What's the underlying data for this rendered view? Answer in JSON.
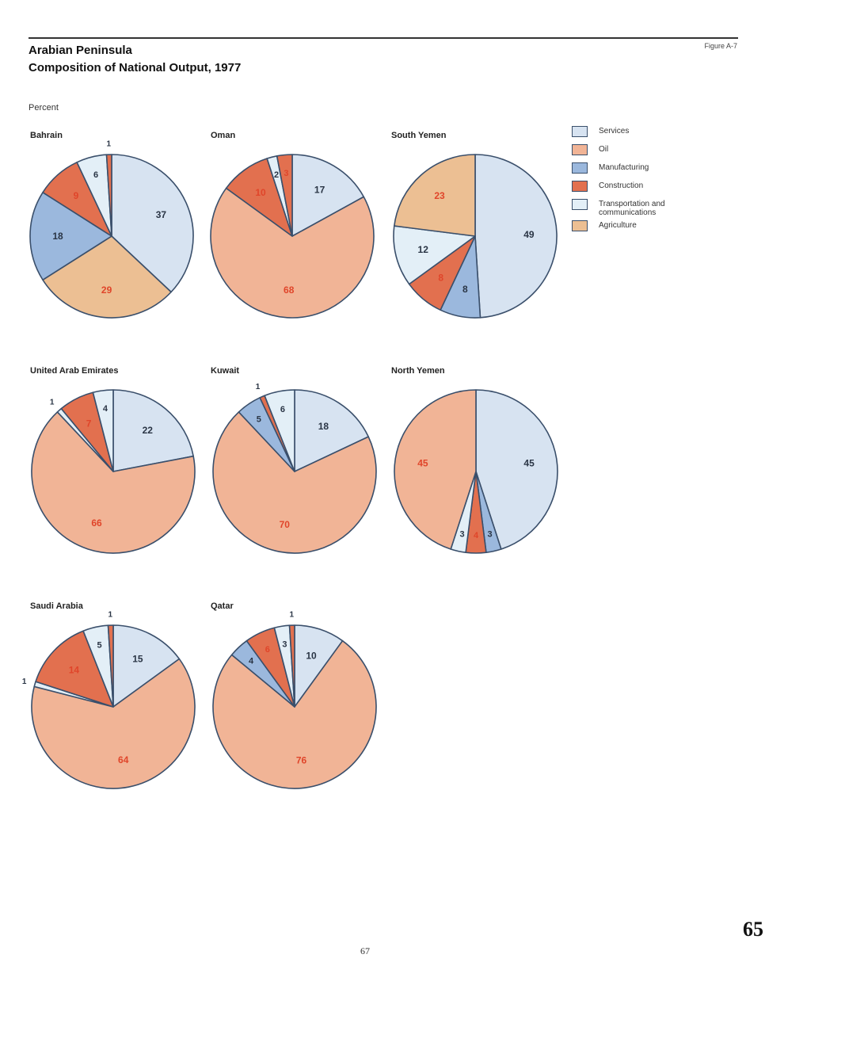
{
  "header": {
    "figure_label": "Figure A-7",
    "title_line1": "Arabian Peninsula",
    "title_line2": "Composition of National Output, 1977",
    "unit": "Percent"
  },
  "colors": {
    "Services": "#d7e3f1",
    "Oil": "#f1b496",
    "Manufacturing": "#9bb8dd",
    "Construction": "#e2704f",
    "Transportation and communications": "#e3eff7",
    "Agriculture": "#ecbf93",
    "outline": "#3a4f6b",
    "label_red": "#e0452a",
    "label_dark": "#2a3545"
  },
  "legend": {
    "items": [
      {
        "label": "Services",
        "color": "#d7e3f1"
      },
      {
        "label": "Oil",
        "color": "#f1b496"
      },
      {
        "label": "Manufacturing",
        "color": "#9bb8dd"
      },
      {
        "label": "Construction",
        "color": "#e2704f"
      },
      {
        "label": "Transportation and communications",
        "color": "#e3eff7"
      },
      {
        "label": "Agriculture",
        "color": "#ecbf93"
      }
    ]
  },
  "chart_data": [
    {
      "type": "pie",
      "title": "Bahrain",
      "slices": [
        {
          "category": "Services",
          "value": 37,
          "label": "37"
        },
        {
          "category": "Agriculture",
          "value": 29,
          "label": "29"
        },
        {
          "category": "Manufacturing",
          "value": 18,
          "label": "18"
        },
        {
          "category": "Construction",
          "value": 9,
          "label": "9"
        },
        {
          "category": "Transportation and communications",
          "value": 6,
          "label": "6"
        },
        {
          "category": "Construction",
          "value": 1,
          "label": "1"
        }
      ]
    },
    {
      "type": "pie",
      "title": "Oman",
      "slices": [
        {
          "category": "Services",
          "value": 17,
          "label": "17"
        },
        {
          "category": "Oil",
          "value": 68,
          "label": "68"
        },
        {
          "category": "Construction",
          "value": 10,
          "label": "10"
        },
        {
          "category": "Transportation and communications",
          "value": 2,
          "label": "2"
        },
        {
          "category": "Construction",
          "value": 3,
          "label": "3"
        }
      ]
    },
    {
      "type": "pie",
      "title": "South Yemen",
      "slices": [
        {
          "category": "Services",
          "value": 49,
          "label": "49"
        },
        {
          "category": "Manufacturing",
          "value": 8,
          "label": "8"
        },
        {
          "category": "Construction",
          "value": 8,
          "label": "8"
        },
        {
          "category": "Transportation and communications",
          "value": 12,
          "label": "12"
        },
        {
          "category": "Agriculture",
          "value": 23,
          "label": "23"
        }
      ]
    },
    {
      "type": "pie",
      "title": "United Arab Emirates",
      "slices": [
        {
          "category": "Services",
          "value": 22,
          "label": "22"
        },
        {
          "category": "Oil",
          "value": 66,
          "label": "66"
        },
        {
          "category": "Transportation and communications",
          "value": 1,
          "label": "1"
        },
        {
          "category": "Construction",
          "value": 7,
          "label": "7"
        },
        {
          "category": "Transportation and communications",
          "value": 4,
          "label": "4"
        }
      ]
    },
    {
      "type": "pie",
      "title": "Kuwait",
      "slices": [
        {
          "category": "Services",
          "value": 18,
          "label": "18"
        },
        {
          "category": "Oil",
          "value": 70,
          "label": "70"
        },
        {
          "category": "Manufacturing",
          "value": 5,
          "label": "5"
        },
        {
          "category": "Construction",
          "value": 1,
          "label": "1"
        },
        {
          "category": "Transportation and communications",
          "value": 6,
          "label": "6"
        }
      ]
    },
    {
      "type": "pie",
      "title": "North Yemen",
      "slices": [
        {
          "category": "Services",
          "value": 45,
          "label": "45"
        },
        {
          "category": "Manufacturing",
          "value": 3,
          "label": "3"
        },
        {
          "category": "Construction",
          "value": 4,
          "label": "4"
        },
        {
          "category": "Transportation and communications",
          "value": 3,
          "label": "3"
        },
        {
          "category": "Oil",
          "value": 45,
          "label": "45"
        }
      ]
    },
    {
      "type": "pie",
      "title": "Saudi Arabia",
      "slices": [
        {
          "category": "Services",
          "value": 15,
          "label": "15"
        },
        {
          "category": "Oil",
          "value": 64,
          "label": "64"
        },
        {
          "category": "Transportation and communications",
          "value": 1,
          "label": "1"
        },
        {
          "category": "Construction",
          "value": 14,
          "label": "14"
        },
        {
          "category": "Transportation and communications",
          "value": 5,
          "label": "5"
        },
        {
          "category": "Construction",
          "value": 1,
          "label": "1"
        }
      ]
    },
    {
      "type": "pie",
      "title": "Qatar",
      "slices": [
        {
          "category": "Services",
          "value": 10,
          "label": "10"
        },
        {
          "category": "Oil",
          "value": 76,
          "label": "76"
        },
        {
          "category": "Manufacturing",
          "value": 4,
          "label": "4"
        },
        {
          "category": "Construction",
          "value": 6,
          "label": "6"
        },
        {
          "category": "Transportation and communications",
          "value": 3,
          "label": "3"
        },
        {
          "category": "Construction",
          "value": 1,
          "label": "1"
        }
      ]
    }
  ],
  "footer": {
    "page_number": "67",
    "page_number_large": "65"
  }
}
